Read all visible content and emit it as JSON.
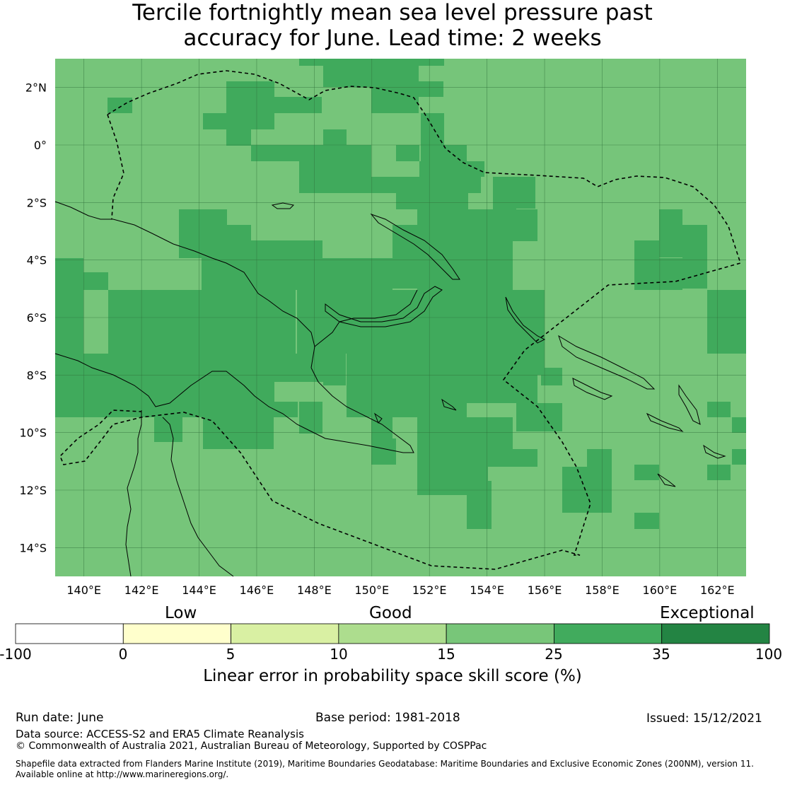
{
  "title": {
    "line1": "Tercile fortnightly mean sea level pressure past",
    "line2": "accuracy for June. Lead time: 2 weeks"
  },
  "map": {
    "lon_range": [
      139,
      163
    ],
    "lat_range": [
      -15,
      3
    ],
    "lon_ticks": [
      "140°E",
      "142°E",
      "144°E",
      "146°E",
      "148°E",
      "150°E",
      "152°E",
      "154°E",
      "156°E",
      "158°E",
      "160°E",
      "162°E"
    ],
    "lat_ticks": [
      "2°N",
      "0°",
      "2°S",
      "4°S",
      "6°S",
      "8°S",
      "10°S",
      "12°S",
      "14°S"
    ],
    "colors": {
      "base": "#76c57a",
      "high": "#40aa5c",
      "line": "#000000"
    }
  },
  "colorbar": {
    "categories": {
      "low": "Low",
      "good": "Good",
      "exceptional": "Exceptional"
    },
    "ticks": [
      "-100",
      "0",
      "5",
      "10",
      "15",
      "25",
      "35",
      "100"
    ],
    "colors": [
      "#ffffff",
      "#ffffcc",
      "#d9f0a3",
      "#addd8e",
      "#78c679",
      "#41ab5d",
      "#238443"
    ],
    "label": "Linear error in probability space skill score (%)"
  },
  "footer": {
    "run_date": "Run date: June",
    "base_period": "Base period: 1981-2018",
    "issued": "Issued: 15/12/2021",
    "data_source": "Data source: ACCESS-S2 and ERA5 Climate Reanalysis",
    "copyright": "© Commonwealth of Australia 2021, Australian Bureau of Meteorology, Supported by COSPPac",
    "shapefile_line1": "Shapefile data extracted from Flanders Marine Institute (2019), Maritime Boundaries Geodatabase: Maritime Boundaries and Exclusive Economic Zones (200NM), version 11.",
    "shapefile_line2": "Available online at http://www.marineregions.org/."
  }
}
